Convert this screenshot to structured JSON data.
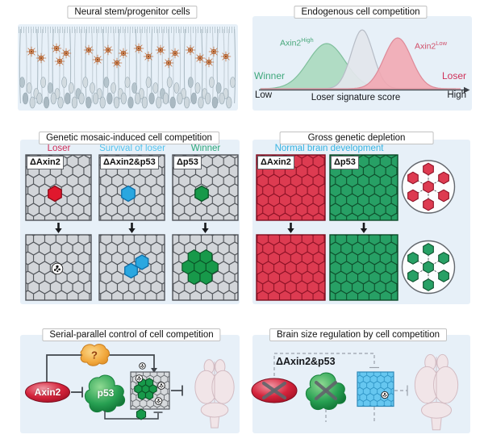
{
  "panels": {
    "nspc": {
      "title": "Neural stem/progenitor cells"
    },
    "endogenous": {
      "title": "Endogenous cell competition",
      "winner_label": "Winner",
      "loser_label": "Loser",
      "winner_text_color": "#3fa87c",
      "loser_text_color": "#cf3059",
      "x_low": "Low",
      "x_high": "High",
      "x_axis_label": "Loser signature score",
      "curves": [
        {
          "label_base": "Axin2",
          "label_sup": "High",
          "identity": "winner population",
          "color": "#a9d8bc",
          "peak": "low score",
          "label_color": "#49a87b"
        },
        {
          "identity": "bulk population",
          "color": "#e3e6ec",
          "peak": "mid score"
        },
        {
          "label_base": "Axin2",
          "label_sup": "Low",
          "identity": "loser population",
          "color": "#f2a6b0",
          "peak": "high score",
          "label_color": "#d0506a"
        }
      ]
    },
    "mosaic": {
      "title": "Genetic mosaic-induced cell competition",
      "columns": [
        {
          "outcome": "Loser",
          "genotype": "ΔAxin2",
          "outcome_color": "#cf3059",
          "accent_color": "#e0182d",
          "result": "eliminated (apoptosis)"
        },
        {
          "outcome": "Survival of loser",
          "genotype": "ΔAxin2&p53",
          "outcome_color": "#54c3ee",
          "accent_color": "#2aa7e0",
          "result": "clone survives"
        },
        {
          "outcome": "Winner",
          "genotype": "Δp53",
          "outcome_color": "#2ea87a",
          "accent_color": "#17994a",
          "result": "clone expands"
        }
      ]
    },
    "gross": {
      "title": "Gross genetic depletion",
      "subtitle": "Normal brain development",
      "subtitle_color": "#37b4e2",
      "columns": [
        {
          "genotype": "ΔAxin2",
          "color": "#dd3b51"
        },
        {
          "genotype": "Δp53",
          "color": "#27a065"
        }
      ]
    },
    "serial": {
      "title": "Serial-parallel control of cell competition",
      "nodes": {
        "axin2": "Axin2",
        "p53": "p53",
        "unknown_factor": "?"
      }
    },
    "brain_size": {
      "title": "Brain size regulation by cell competition",
      "genotype": "ΔAxin2&p53"
    }
  },
  "colors": {
    "panel_bg": "#e7f0f8",
    "accent_red": "#e0182d",
    "accent_blue": "#2aa7e0",
    "accent_green": "#17994a",
    "grid_gray_fill": "#d2d5d9",
    "grid_gray_stroke": "#4e5257",
    "grid_red_fill": "#dd3b51",
    "grid_red_stroke": "#8e1226",
    "grid_green_fill": "#27a065",
    "grid_green_stroke": "#0d4f2c",
    "grid_blue_fill": "#66c7f0",
    "grid_blue_stroke": "#2d93c4",
    "curve_green": "#a9d8bc",
    "curve_gray": "#e3e6ec",
    "curve_red": "#f2a6b0",
    "axin2_red": "#c0122b",
    "p53_green": "#1a9145",
    "unknown_orange": "#f0a838",
    "brain_fill": "#f1e5e8",
    "brain_stroke": "#d3bcc3",
    "line_dark": "#3f444a",
    "dash_gray": "#9aa1aa"
  }
}
